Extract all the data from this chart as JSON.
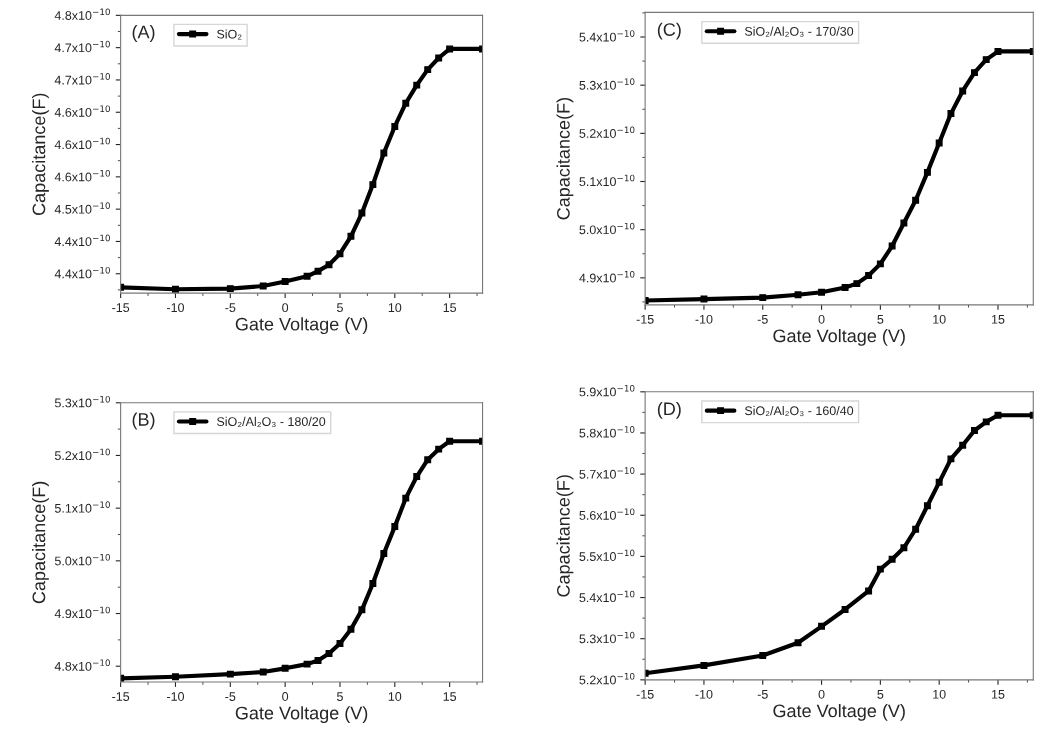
{
  "chart_data": [
    {
      "type": "line",
      "xlabel": "Gate Voltage (V)",
      "ylabel": "Capacitance(F)",
      "annotations": [
        "(A)"
      ],
      "legend": "top left",
      "marker": "square",
      "grid": false,
      "xlim": [
        -15,
        18
      ],
      "xticks": [
        -15,
        -10,
        -5,
        0,
        5,
        10,
        15
      ],
      "ylim": [
        4.37e-10,
        4.8e-10
      ],
      "yticks": [
        {
          "value": 4.4e-10,
          "label": "4.4x10$^{−10}$"
        },
        {
          "value": 4.45e-10,
          "label": "4.4x10$^{−10}$"
        },
        {
          "value": 4.5e-10,
          "label": "4.5x10$^{−10}$"
        },
        {
          "value": 4.55e-10,
          "label": "4.6x10$^{−10}$"
        },
        {
          "value": 4.6e-10,
          "label": "4.6x10$^{−10}$"
        },
        {
          "value": 4.65e-10,
          "label": "4.6x10$^{−10}$"
        },
        {
          "value": 4.7e-10,
          "label": "4.7x10$^{−10}$"
        },
        {
          "value": 4.75e-10,
          "label": "4.7x10$^{−10}$"
        },
        {
          "value": 4.8e-10,
          "label": "4.8x10$^{−10}$"
        }
      ],
      "series": [
        {
          "name": "SiO₂",
          "color": "#000000",
          "x": [
            -15,
            -10,
            -5,
            -2,
            0,
            2,
            3,
            4,
            5,
            6,
            7,
            8,
            9,
            10,
            11,
            12,
            13,
            14,
            15,
            18
          ],
          "values": [
            4.379e-10,
            4.376e-10,
            4.377e-10,
            4.381e-10,
            4.388e-10,
            4.396e-10,
            4.404e-10,
            4.414e-10,
            4.431e-10,
            4.458e-10,
            4.494e-10,
            4.538e-10,
            4.587e-10,
            4.628e-10,
            4.664e-10,
            4.692e-10,
            4.716e-10,
            4.734e-10,
            4.748e-10,
            4.748e-10
          ]
        }
      ]
    },
    {
      "type": "line",
      "xlabel": "Gate Voltage (V)",
      "ylabel": "Capacitance(F)",
      "annotations": [
        "(C)"
      ],
      "legend": "top left",
      "marker": "square",
      "grid": false,
      "xlim": [
        -15,
        18
      ],
      "xticks": [
        -15,
        -10,
        -5,
        0,
        5,
        10,
        15
      ],
      "ylim": [
        4.844e-10,
        5.451e-10
      ],
      "yticks": [
        {
          "value": 4.9e-10,
          "label": "4.9x10$^{−10}$"
        },
        {
          "value": 5e-10,
          "label": "5.0x10$^{−10}$"
        },
        {
          "value": 5.1e-10,
          "label": "5.1x10$^{−10}$"
        },
        {
          "value": 5.2e-10,
          "label": "5.2x10$^{−10}$"
        },
        {
          "value": 5.3e-10,
          "label": "5.3x10$^{−10}$"
        },
        {
          "value": 5.4e-10,
          "label": "5.4x10$^{−10}$"
        }
      ],
      "series": [
        {
          "name": "SiO₂/Al₂O₃ - 170/30",
          "color": "#000000",
          "x": [
            -15,
            -10,
            -5,
            -2,
            0,
            2,
            3,
            4,
            5,
            6,
            7,
            8,
            9,
            10,
            11,
            12,
            13,
            14,
            15,
            18
          ],
          "values": [
            4.853e-10,
            4.856e-10,
            4.859e-10,
            4.865e-10,
            4.87e-10,
            4.88e-10,
            4.888e-10,
            4.905e-10,
            4.929e-10,
            4.966e-10,
            5.014e-10,
            5.061e-10,
            5.119e-10,
            5.18e-10,
            5.241e-10,
            5.288e-10,
            5.326e-10,
            5.353e-10,
            5.37e-10,
            5.37e-10
          ]
        }
      ]
    },
    {
      "type": "line",
      "xlabel": "Gate Voltage (V)",
      "ylabel": "Capacitance(F)",
      "annotations": [
        "(B)"
      ],
      "legend": "top left",
      "marker": "square",
      "grid": false,
      "xlim": [
        -15,
        18
      ],
      "xticks": [
        -15,
        -10,
        -5,
        0,
        5,
        10,
        15
      ],
      "ylim": [
        4.77e-10,
        5.3e-10
      ],
      "yticks": [
        {
          "value": 4.8e-10,
          "label": "4.8x10$^{−10}$"
        },
        {
          "value": 4.9e-10,
          "label": "4.9x10$^{−10}$"
        },
        {
          "value": 5e-10,
          "label": "5.0x10$^{−10}$"
        },
        {
          "value": 5.1e-10,
          "label": "5.1x10$^{−10}$"
        },
        {
          "value": 5.2e-10,
          "label": "5.2x10$^{−10}$"
        },
        {
          "value": 5.3e-10,
          "label": "5.3x10$^{−10}$"
        }
      ],
      "series": [
        {
          "name": "SiO₂/Al₂O₃ - 180/20",
          "color": "#000000",
          "x": [
            -15,
            -10,
            -5,
            -2,
            0,
            2,
            3,
            4,
            5,
            6,
            7,
            8,
            9,
            10,
            11,
            12,
            13,
            14,
            15,
            18
          ],
          "values": [
            4.777e-10,
            4.78e-10,
            4.785e-10,
            4.789e-10,
            4.796e-10,
            4.804e-10,
            4.811e-10,
            4.824e-10,
            4.843e-10,
            4.87e-10,
            4.907e-10,
            4.957e-10,
            5.014e-10,
            5.065e-10,
            5.119e-10,
            5.16e-10,
            5.192e-10,
            5.212e-10,
            5.227e-10,
            5.227e-10
          ]
        }
      ]
    },
    {
      "type": "line",
      "xlabel": "Gate Voltage (V)",
      "ylabel": "Capacitance(F)",
      "annotations": [
        "(D)"
      ],
      "legend": "top left",
      "marker": "square",
      "grid": false,
      "xlim": [
        -15,
        18
      ],
      "xticks": [
        -15,
        -10,
        -5,
        0,
        5,
        10,
        15
      ],
      "ylim": [
        5.2e-10,
        5.9e-10
      ],
      "yticks": [
        {
          "value": 5.2e-10,
          "label": "5.2x10$^{−10}$"
        },
        {
          "value": 5.3e-10,
          "label": "5.3x10$^{−10}$"
        },
        {
          "value": 5.4e-10,
          "label": "5.4x10$^{−10}$"
        },
        {
          "value": 5.5e-10,
          "label": "5.5x10$^{−10}$"
        },
        {
          "value": 5.6e-10,
          "label": "5.6x10$^{−10}$"
        },
        {
          "value": 5.7e-10,
          "label": "5.7x10$^{−10}$"
        },
        {
          "value": 5.8e-10,
          "label": "5.8x10$^{−10}$"
        },
        {
          "value": 5.9e-10,
          "label": "5.9x10$^{−10}$"
        }
      ],
      "series": [
        {
          "name": "SiO₂/Al₂O₃ - 160/40",
          "color": "#000000",
          "x": [
            -15,
            -10,
            -5,
            -2,
            0,
            2,
            4,
            5,
            6,
            7,
            8,
            9,
            10,
            11,
            12,
            13,
            14,
            15,
            18
          ],
          "values": [
            5.216e-10,
            5.235e-10,
            5.259e-10,
            5.29e-10,
            5.33e-10,
            5.371e-10,
            5.416e-10,
            5.469e-10,
            5.493e-10,
            5.521e-10,
            5.566e-10,
            5.623e-10,
            5.68e-10,
            5.737e-10,
            5.77e-10,
            5.806e-10,
            5.827e-10,
            5.843e-10,
            5.843e-10
          ]
        }
      ]
    }
  ]
}
